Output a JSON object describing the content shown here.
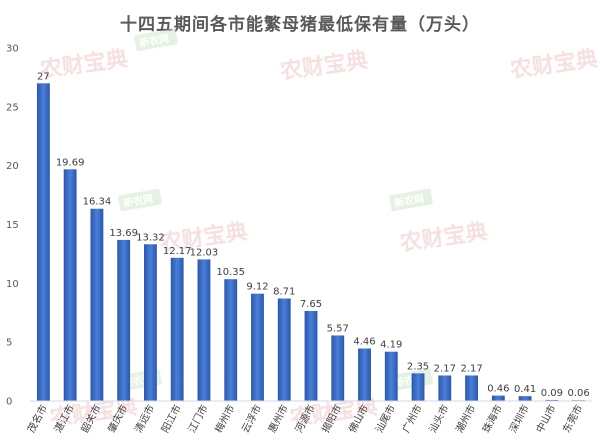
{
  "chart_data": {
    "type": "bar",
    "title": "十四五期间各市能繁母猪最低保有量（万头）",
    "categories": [
      "茂名市",
      "湛江市",
      "韶关市",
      "肇庆市",
      "清远市",
      "阳江市",
      "江门市",
      "梅州市",
      "云浮市",
      "惠州市",
      "河源市",
      "揭阳市",
      "佛山市",
      "汕尾市",
      "广州市",
      "汕头市",
      "潮州市",
      "珠海市",
      "深圳市",
      "中山市",
      "东莞市"
    ],
    "values": [
      27,
      19.69,
      16.34,
      13.69,
      13.32,
      12.17,
      12.03,
      10.35,
      9.12,
      8.71,
      7.65,
      5.57,
      4.46,
      4.19,
      2.35,
      2.17,
      2.17,
      0.46,
      0.41,
      0.09,
      0.06
    ],
    "value_labels": [
      "27",
      "19.69",
      "16.34",
      "13.69",
      "13.32",
      "12.17",
      "12.03",
      "10.35",
      "9.12",
      "8.71",
      "7.65",
      "5.57",
      "4.46",
      "4.19",
      "2.35",
      "2.17",
      "2.17",
      "0.46",
      "0.41",
      "0.09",
      "0.06"
    ],
    "yticks": [
      0,
      5,
      10,
      15,
      20,
      25,
      30
    ],
    "ylim": [
      0,
      30
    ],
    "grid": false,
    "bar_color": "#3a6fcc",
    "bar_color_dark": "#2a57b0"
  },
  "watermarks": {
    "pink_text": "农财宝典",
    "green_text": "新农网"
  }
}
